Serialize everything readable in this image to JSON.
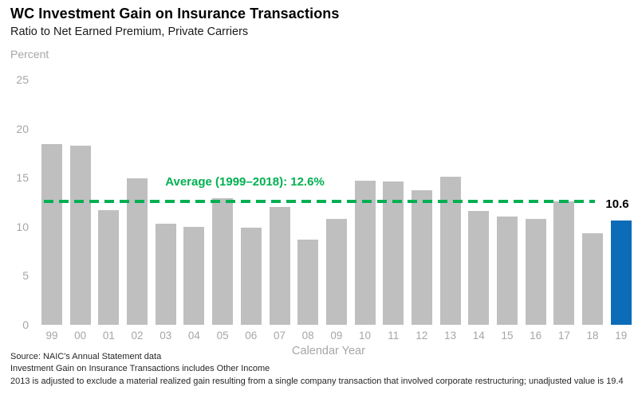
{
  "header": {
    "title": "WC Investment Gain on Insurance Transactions",
    "subtitle": "Ratio to Net Earned Premium, Private Carriers",
    "unit_label": "Percent"
  },
  "chart_data": {
    "type": "bar",
    "title": "WC Investment Gain on Insurance Transactions",
    "subtitle": "Ratio to Net Earned Premium, Private Carriers",
    "xlabel": "Calendar Year",
    "ylabel": "Percent",
    "ylim": [
      0,
      25
    ],
    "yticks": [
      0,
      5,
      10,
      15,
      20,
      25
    ],
    "grid": false,
    "legend": "none",
    "categories": [
      "99",
      "00",
      "01",
      "02",
      "03",
      "04",
      "05",
      "06",
      "07",
      "08",
      "09",
      "10",
      "11",
      "12",
      "13",
      "14",
      "15",
      "16",
      "17",
      "18",
      "19"
    ],
    "values": [
      18.4,
      18.3,
      11.7,
      14.9,
      10.3,
      10.0,
      12.9,
      9.9,
      12.0,
      8.7,
      10.8,
      14.7,
      14.6,
      13.7,
      15.1,
      11.6,
      11.0,
      10.8,
      12.6,
      9.3,
      10.6
    ],
    "bar_color": "#BFBFBF",
    "highlight_index": 20,
    "highlight_color": "#0C6CB8",
    "highlight_value_label": "10.6",
    "average_line": {
      "value": 12.6,
      "label": "Average (1999–2018): 12.6%",
      "color": "#00B050",
      "span": [
        "99",
        "18"
      ]
    }
  },
  "footer": {
    "lines": [
      "Source: NAIC's Annual Statement data",
      "Investment Gain on Insurance Transactions includes Other Income",
      "2013 is adjusted to exclude a material realized gain resulting from a single company transaction that involved corporate restructuring; unadjusted value is 19.4"
    ]
  },
  "colors": {
    "background": "#FFFFFF",
    "bar_gray": "#BFBFBF",
    "highlight_blue": "#0C6CB8",
    "average_green": "#00B050",
    "axis_text_gray": "#A6A6A6",
    "title_black": "#000000",
    "footnote_gray": "#262626"
  }
}
